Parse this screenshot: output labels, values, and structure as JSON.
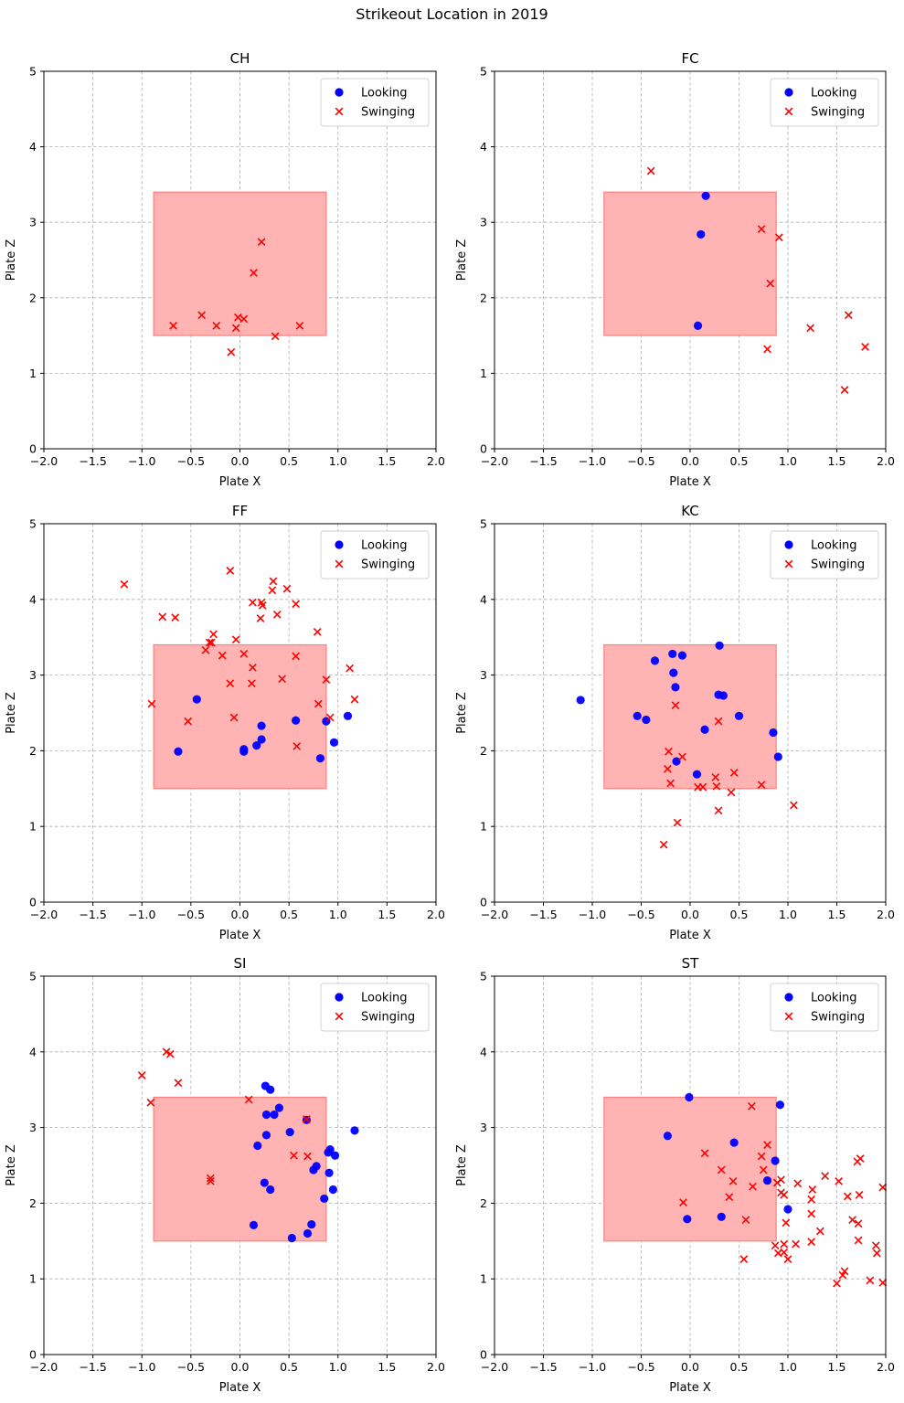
{
  "figure_title": "Strikeout Location in 2019",
  "chart_data": [
    {
      "type": "scatter",
      "title": "CH",
      "xlabel": "Plate X",
      "ylabel": "Plate Z",
      "xlim": [
        -2,
        2
      ],
      "ylim": [
        0,
        5
      ],
      "xticks": [
        -2.0,
        -1.5,
        -1.0,
        -0.5,
        0.0,
        0.5,
        1.0,
        1.5,
        2.0
      ],
      "yticks": [
        0,
        1,
        2,
        3,
        4,
        5
      ],
      "strike_zone": {
        "x": [
          -0.88,
          0.88
        ],
        "z": [
          1.5,
          3.4
        ],
        "color": "#ffb3b3"
      },
      "grid": true,
      "legend": "top-right",
      "series": [
        {
          "name": "Looking",
          "marker": "circle",
          "color": "#0000ff",
          "points": []
        },
        {
          "name": "Swinging",
          "marker": "x",
          "color": "#ff0000",
          "points": [
            [
              -0.68,
              1.63
            ],
            [
              -0.39,
              1.77
            ],
            [
              -0.24,
              1.63
            ],
            [
              -0.04,
              1.6
            ],
            [
              -0.02,
              1.74
            ],
            [
              0.04,
              1.72
            ],
            [
              -0.09,
              1.28
            ],
            [
              0.14,
              2.33
            ],
            [
              0.22,
              2.74
            ],
            [
              0.36,
              1.49
            ],
            [
              0.61,
              1.63
            ]
          ]
        }
      ]
    },
    {
      "type": "scatter",
      "title": "FC",
      "xlabel": "Plate X",
      "ylabel": "Plate Z",
      "xlim": [
        -2,
        2
      ],
      "ylim": [
        0,
        5
      ],
      "xticks": [
        -2.0,
        -1.5,
        -1.0,
        -0.5,
        0.0,
        0.5,
        1.0,
        1.5,
        2.0
      ],
      "yticks": [
        0,
        1,
        2,
        3,
        4,
        5
      ],
      "strike_zone": {
        "x": [
          -0.88,
          0.88
        ],
        "z": [
          1.5,
          3.4
        ],
        "color": "#ffb3b3"
      },
      "grid": true,
      "legend": "top-right",
      "series": [
        {
          "name": "Looking",
          "marker": "circle",
          "color": "#0000ff",
          "points": [
            [
              0.16,
              3.35
            ],
            [
              0.11,
              2.84
            ],
            [
              0.08,
              1.63
            ]
          ]
        },
        {
          "name": "Swinging",
          "marker": "x",
          "color": "#ff0000",
          "points": [
            [
              -0.4,
              3.68
            ],
            [
              0.73,
              2.91
            ],
            [
              0.91,
              2.8
            ],
            [
              0.82,
              2.19
            ],
            [
              0.79,
              1.32
            ],
            [
              1.23,
              1.6
            ],
            [
              1.62,
              1.77
            ],
            [
              1.79,
              1.35
            ],
            [
              1.58,
              0.78
            ]
          ]
        }
      ]
    },
    {
      "type": "scatter",
      "title": "FF",
      "xlabel": "Plate X",
      "ylabel": "Plate Z",
      "xlim": [
        -2,
        2
      ],
      "ylim": [
        0,
        5
      ],
      "xticks": [
        -2.0,
        -1.5,
        -1.0,
        -0.5,
        0.0,
        0.5,
        1.0,
        1.5,
        2.0
      ],
      "yticks": [
        0,
        1,
        2,
        3,
        4,
        5
      ],
      "strike_zone": {
        "x": [
          -0.88,
          0.88
        ],
        "z": [
          1.5,
          3.4
        ],
        "color": "#ffb3b3"
      },
      "grid": true,
      "legend": "top-right",
      "series": [
        {
          "name": "Looking",
          "marker": "circle",
          "color": "#0000ff",
          "points": [
            [
              -0.44,
              2.68
            ],
            [
              -0.63,
              1.99
            ],
            [
              0.04,
              2.02
            ],
            [
              0.04,
              1.99
            ],
            [
              0.17,
              2.07
            ],
            [
              0.22,
              2.15
            ],
            [
              0.22,
              2.33
            ],
            [
              0.57,
              2.4
            ],
            [
              0.82,
              1.9
            ],
            [
              0.88,
              2.39
            ],
            [
              0.96,
              2.11
            ],
            [
              1.1,
              2.46
            ]
          ]
        },
        {
          "name": "Swinging",
          "marker": "x",
          "color": "#ff0000",
          "points": [
            [
              -1.18,
              4.2
            ],
            [
              -0.1,
              4.38
            ],
            [
              -0.79,
              3.77
            ],
            [
              -0.66,
              3.76
            ],
            [
              0.34,
              4.24
            ],
            [
              0.33,
              4.12
            ],
            [
              0.48,
              4.14
            ],
            [
              0.13,
              3.96
            ],
            [
              0.22,
              3.96
            ],
            [
              0.23,
              3.92
            ],
            [
              0.57,
              3.94
            ],
            [
              0.21,
              3.75
            ],
            [
              0.38,
              3.8
            ],
            [
              -0.27,
              3.54
            ],
            [
              -0.29,
              3.43
            ],
            [
              -0.31,
              3.43
            ],
            [
              -0.35,
              3.33
            ],
            [
              -0.04,
              3.47
            ],
            [
              0.79,
              3.57
            ],
            [
              0.04,
              3.28
            ],
            [
              -0.18,
              3.26
            ],
            [
              0.57,
              3.25
            ],
            [
              0.13,
              3.1
            ],
            [
              1.12,
              3.09
            ],
            [
              0.43,
              2.95
            ],
            [
              0.88,
              2.94
            ],
            [
              -0.1,
              2.89
            ],
            [
              0.12,
              2.89
            ],
            [
              -0.9,
              2.62
            ],
            [
              0.8,
              2.62
            ],
            [
              1.17,
              2.68
            ],
            [
              -0.53,
              2.39
            ],
            [
              -0.06,
              2.44
            ],
            [
              0.92,
              2.44
            ],
            [
              0.58,
              2.06
            ]
          ]
        }
      ]
    },
    {
      "type": "scatter",
      "title": "KC",
      "xlabel": "Plate X",
      "ylabel": "Plate Z",
      "xlim": [
        -2,
        2
      ],
      "ylim": [
        0,
        5
      ],
      "xticks": [
        -2.0,
        -1.5,
        -1.0,
        -0.5,
        0.0,
        0.5,
        1.0,
        1.5,
        2.0
      ],
      "yticks": [
        0,
        1,
        2,
        3,
        4,
        5
      ],
      "strike_zone": {
        "x": [
          -0.88,
          0.88
        ],
        "z": [
          1.5,
          3.4
        ],
        "color": "#ffb3b3"
      },
      "grid": true,
      "legend": "top-right",
      "series": [
        {
          "name": "Looking",
          "marker": "circle",
          "color": "#0000ff",
          "points": [
            [
              -1.12,
              2.67
            ],
            [
              -0.54,
              2.46
            ],
            [
              -0.45,
              2.41
            ],
            [
              -0.36,
              3.19
            ],
            [
              -0.18,
              3.28
            ],
            [
              -0.08,
              3.26
            ],
            [
              -0.17,
              3.03
            ],
            [
              -0.15,
              2.84
            ],
            [
              0.3,
              3.39
            ],
            [
              0.29,
              2.74
            ],
            [
              0.34,
              2.73
            ],
            [
              0.15,
              2.28
            ],
            [
              0.5,
              2.46
            ],
            [
              0.85,
              2.24
            ],
            [
              0.9,
              1.92
            ],
            [
              -0.14,
              1.86
            ],
            [
              0.07,
              1.69
            ]
          ]
        },
        {
          "name": "Swinging",
          "marker": "x",
          "color": "#ff0000",
          "points": [
            [
              -0.15,
              2.6
            ],
            [
              0.29,
              2.39
            ],
            [
              -0.22,
              1.99
            ],
            [
              -0.23,
              1.76
            ],
            [
              -0.08,
              1.92
            ],
            [
              -0.2,
              1.57
            ],
            [
              0.08,
              1.52
            ],
            [
              0.13,
              1.52
            ],
            [
              0.26,
              1.65
            ],
            [
              0.27,
              1.53
            ],
            [
              0.45,
              1.71
            ],
            [
              0.42,
              1.45
            ],
            [
              0.73,
              1.55
            ],
            [
              1.06,
              1.28
            ],
            [
              0.29,
              1.21
            ],
            [
              -0.13,
              1.05
            ],
            [
              -0.27,
              0.76
            ]
          ]
        }
      ]
    },
    {
      "type": "scatter",
      "title": "SI",
      "xlabel": "Plate X",
      "ylabel": "Plate Z",
      "xlim": [
        -2,
        2
      ],
      "ylim": [
        0,
        5
      ],
      "xticks": [
        -2.0,
        -1.5,
        -1.0,
        -0.5,
        0.0,
        0.5,
        1.0,
        1.5,
        2.0
      ],
      "yticks": [
        0,
        1,
        2,
        3,
        4,
        5
      ],
      "strike_zone": {
        "x": [
          -0.88,
          0.88
        ],
        "z": [
          1.5,
          3.4
        ],
        "color": "#ffb3b3"
      },
      "grid": true,
      "legend": "top-right",
      "series": [
        {
          "name": "Looking",
          "marker": "circle",
          "color": "#0000ff",
          "points": [
            [
              0.26,
              3.55
            ],
            [
              0.31,
              3.5
            ],
            [
              0.4,
              3.26
            ],
            [
              0.27,
              3.17
            ],
            [
              0.35,
              3.17
            ],
            [
              0.68,
              3.1
            ],
            [
              0.27,
              2.9
            ],
            [
              0.51,
              2.94
            ],
            [
              1.17,
              2.96
            ],
            [
              0.18,
              2.76
            ],
            [
              0.9,
              2.67
            ],
            [
              0.92,
              2.71
            ],
            [
              0.97,
              2.63
            ],
            [
              0.78,
              2.49
            ],
            [
              0.75,
              2.44
            ],
            [
              0.91,
              2.4
            ],
            [
              0.25,
              2.27
            ],
            [
              0.31,
              2.18
            ],
            [
              0.95,
              2.18
            ],
            [
              0.86,
              2.06
            ],
            [
              0.14,
              1.71
            ],
            [
              0.73,
              1.72
            ],
            [
              0.69,
              1.6
            ],
            [
              0.53,
              1.54
            ]
          ]
        },
        {
          "name": "Swinging",
          "marker": "x",
          "color": "#ff0000",
          "points": [
            [
              -0.75,
              4.0
            ],
            [
              -0.71,
              3.97
            ],
            [
              -1.0,
              3.69
            ],
            [
              -0.63,
              3.59
            ],
            [
              -0.91,
              3.33
            ],
            [
              0.09,
              3.37
            ],
            [
              0.68,
              3.11
            ],
            [
              0.55,
              2.63
            ],
            [
              0.69,
              2.62
            ],
            [
              -0.3,
              2.33
            ],
            [
              -0.3,
              2.29
            ]
          ]
        }
      ]
    },
    {
      "type": "scatter",
      "title": "ST",
      "xlabel": "Plate X",
      "ylabel": "Plate Z",
      "xlim": [
        -2,
        2
      ],
      "ylim": [
        0,
        5
      ],
      "xticks": [
        -2.0,
        -1.5,
        -1.0,
        -0.5,
        0.0,
        0.5,
        1.0,
        1.5,
        2.0
      ],
      "yticks": [
        0,
        1,
        2,
        3,
        4,
        5
      ],
      "strike_zone": {
        "x": [
          -0.88,
          0.88
        ],
        "z": [
          1.5,
          3.4
        ],
        "color": "#ffb3b3"
      },
      "grid": true,
      "legend": "top-right",
      "series": [
        {
          "name": "Looking",
          "marker": "circle",
          "color": "#0000ff",
          "points": [
            [
              -0.01,
              3.4
            ],
            [
              0.92,
              3.3
            ],
            [
              -0.23,
              2.89
            ],
            [
              0.45,
              2.8
            ],
            [
              0.87,
              2.56
            ],
            [
              0.79,
              2.3
            ],
            [
              1.0,
              1.92
            ],
            [
              -0.03,
              1.79
            ],
            [
              0.32,
              1.82
            ]
          ]
        },
        {
          "name": "Swinging",
          "marker": "x",
          "color": "#ff0000",
          "points": [
            [
              0.63,
              3.28
            ],
            [
              0.15,
              2.66
            ],
            [
              0.32,
              2.44
            ],
            [
              0.73,
              2.62
            ],
            [
              0.79,
              2.77
            ],
            [
              0.75,
              2.44
            ],
            [
              0.44,
              2.29
            ],
            [
              0.4,
              2.08
            ],
            [
              0.64,
              2.22
            ],
            [
              0.89,
              2.27
            ],
            [
              0.93,
              2.31
            ],
            [
              0.93,
              2.14
            ],
            [
              0.96,
              2.11
            ],
            [
              1.1,
              2.26
            ],
            [
              1.25,
              2.18
            ],
            [
              1.24,
              2.05
            ],
            [
              1.24,
              1.86
            ],
            [
              1.38,
              2.36
            ],
            [
              1.52,
              2.29
            ],
            [
              1.61,
              2.09
            ],
            [
              1.71,
              2.55
            ],
            [
              1.74,
              2.59
            ],
            [
              1.73,
              2.11
            ],
            [
              1.97,
              2.21
            ],
            [
              1.66,
              1.78
            ],
            [
              1.72,
              1.73
            ],
            [
              0.98,
              1.74
            ],
            [
              -0.07,
              2.01
            ],
            [
              0.57,
              1.78
            ],
            [
              1.33,
              1.63
            ],
            [
              0.87,
              1.44
            ],
            [
              0.9,
              1.34
            ],
            [
              0.96,
              1.46
            ],
            [
              0.96,
              1.35
            ],
            [
              1.0,
              1.26
            ],
            [
              1.08,
              1.46
            ],
            [
              1.24,
              1.49
            ],
            [
              1.72,
              1.51
            ],
            [
              1.9,
              1.44
            ],
            [
              1.91,
              1.34
            ],
            [
              0.55,
              1.26
            ],
            [
              1.56,
              1.05
            ],
            [
              1.58,
              1.1
            ],
            [
              1.5,
              0.94
            ],
            [
              1.84,
              0.98
            ],
            [
              1.97,
              0.95
            ]
          ]
        }
      ]
    }
  ]
}
